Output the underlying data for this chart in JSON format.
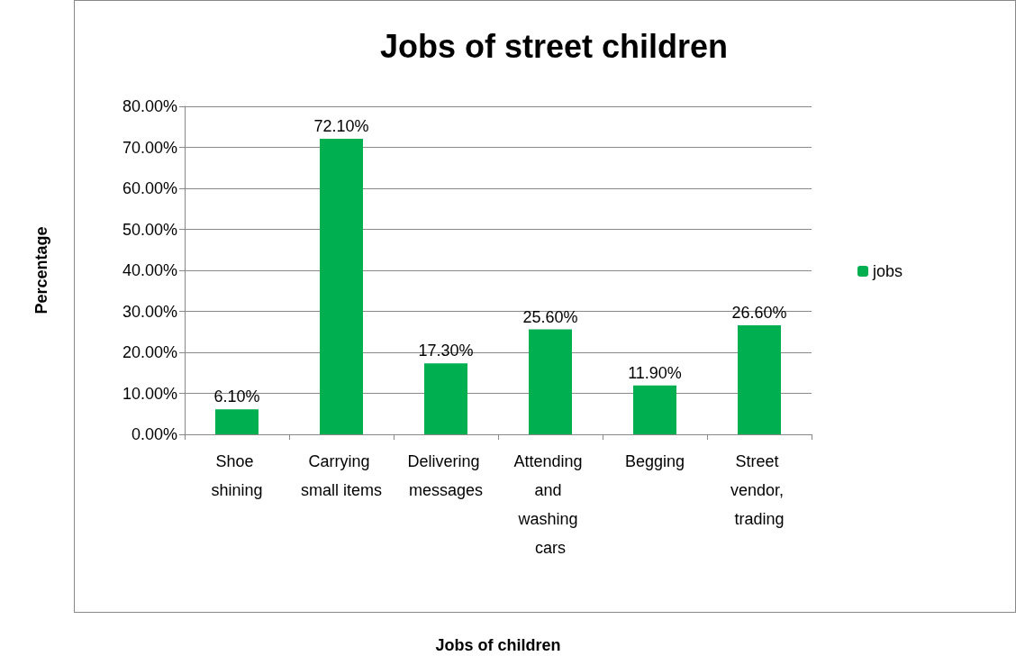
{
  "chart_data": {
    "type": "bar",
    "title": "Jobs of street children",
    "xlabel": "Jobs of children",
    "ylabel": "Percentage",
    "categories": [
      "Shoe shining",
      "Carrying small items",
      "Delivering messages",
      "Attending and washing cars",
      "Begging",
      "Street vendor, trading"
    ],
    "series": [
      {
        "name": "jobs",
        "color": "#00b050",
        "values": [
          6.1,
          72.1,
          17.3,
          25.6,
          11.9,
          26.6
        ],
        "value_labels": [
          "6.10%",
          "72.10%",
          "17.30%",
          "25.60%",
          "11.90%",
          "26.60%"
        ]
      }
    ],
    "ylim": [
      0,
      80
    ],
    "yticks": [
      {
        "value": 0,
        "label": "0.00%"
      },
      {
        "value": 10,
        "label": "10.00%"
      },
      {
        "value": 20,
        "label": "20.00%"
      },
      {
        "value": 30,
        "label": "30.00%"
      },
      {
        "value": 40,
        "label": "40.00%"
      },
      {
        "value": 50,
        "label": "50.00%"
      },
      {
        "value": 60,
        "label": "60.00%"
      },
      {
        "value": 70,
        "label": "70.00%"
      },
      {
        "value": 80,
        "label": "80.00%"
      }
    ],
    "grid": "y",
    "legend": "right"
  }
}
